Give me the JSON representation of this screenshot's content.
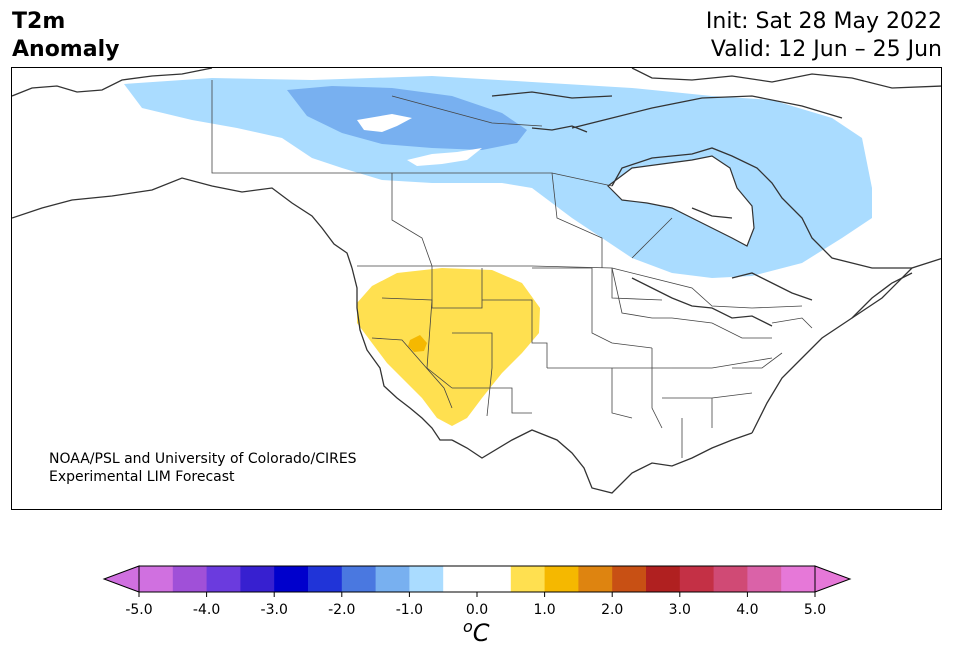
{
  "title": {
    "line1": "T2m",
    "line2": "Anomaly"
  },
  "dates": {
    "init": "Init: Sat 28 May 2022",
    "valid": "Valid: 12 Jun – 25 Jun"
  },
  "credit": {
    "line1": "NOAA/PSL and University of Colorado/CIRES",
    "line2": "Experimental LIM Forecast"
  },
  "colorbar": {
    "unit_sup": "o",
    "unit_main": "C",
    "ticks": [
      "-5.0",
      "-4.0",
      "-3.0",
      "-2.0",
      "-1.0",
      "0.0",
      "1.0",
      "2.0",
      "3.0",
      "4.0",
      "5.0"
    ],
    "tick_values": [
      -5,
      -4,
      -3,
      -2,
      -1,
      0,
      1,
      2,
      3,
      4,
      5
    ],
    "range": [
      -5,
      5
    ],
    "bins": [
      -5.0,
      -4.5,
      -4.0,
      -3.5,
      -3.0,
      -2.5,
      -2.0,
      -1.5,
      -1.0,
      -0.5,
      0.5,
      1.0,
      1.5,
      2.0,
      2.5,
      3.0,
      3.5,
      4.0,
      4.5,
      5.0
    ],
    "colors": [
      "#d070e0",
      "#a050d8",
      "#6b3bde",
      "#3720d0",
      "#0000cc",
      "#2034d8",
      "#4a78e0",
      "#78b0f0",
      "#aadcff",
      "#ffffff",
      "#ffe050",
      "#f5b800",
      "#de8410",
      "#c85014",
      "#b02020",
      "#c43045",
      "#d04a75",
      "#da62a8",
      "#e678d8"
    ],
    "under_color": "#d070e0",
    "over_color": "#e678d8"
  },
  "map_colors": {
    "light_blue": "#aadcff",
    "mid_blue": "#78b0f0",
    "yellow": "#ffe050",
    "orange": "#f5b800",
    "coast": "#333333"
  }
}
